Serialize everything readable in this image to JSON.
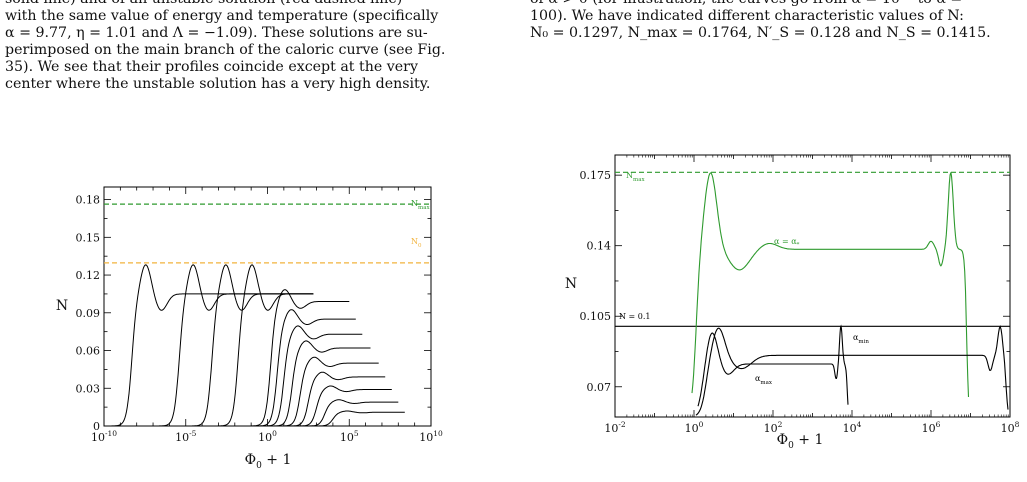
{
  "left_column": {
    "lines": [
      "solid line) and of an unstable solution (red dashed line)",
      "with the same value of energy and temperature (specifically",
      "α = 9.77, η = 1.01 and Λ = −1.09). These solutions are su-",
      "perimposed on the main branch of the caloric curve (see Fig.",
      "35).  We see that their profiles coincide except at the very",
      "center where the unstable solution has a very high density."
    ]
  },
  "right_column": {
    "lines": [
      "of α > 0 (for illustration, the curves go from α = 10⁻⁶ to α =",
      "100). We have indicated different characteristic values of N:",
      "N₀ = 0.1297, N_max = 0.1764, N′_S = 0.128 and N_S = 0.1415."
    ]
  },
  "colors": {
    "green": "#2e9a2e",
    "orange": "#f2b33d",
    "black": "#000000"
  },
  "chart_data": [
    {
      "type": "line",
      "x_scale": "log",
      "xlabel": "Φ0 + 1",
      "ylabel": "N",
      "xlim": [
        1e-10,
        10000000000.0
      ],
      "ylim": [
        0,
        0.19
      ],
      "x_ticks": [
        "10^-10",
        "10^-5",
        "10^0",
        "10^5",
        "10^10"
      ],
      "y_ticks": [
        "0",
        "0.03",
        "0.06",
        "0.09",
        "0.12",
        "0.15",
        "0.18"
      ],
      "reference_lines": [
        {
          "name": "N_max",
          "y": 0.1764,
          "color": "green",
          "style": "dashed"
        },
        {
          "name": "N_0",
          "y": 0.1297,
          "color": "orange",
          "style": "dashed"
        }
      ],
      "series": [
        {
          "rise_log": -8.0,
          "peak": 0.129,
          "plateau": 0.105,
          "end_log": 2.8
        },
        {
          "rise_log": -5.1,
          "peak": 0.129,
          "plateau": 0.105,
          "end_log": 2.8
        },
        {
          "rise_log": -3.1,
          "peak": 0.129,
          "plateau": 0.105,
          "end_log": 2.8
        },
        {
          "rise_log": -1.5,
          "peak": 0.129,
          "plateau": 0.105,
          "end_log": 2.8
        },
        {
          "rise_log": 0.5,
          "peak": 0.109,
          "plateau": 0.099,
          "end_log": 5.0
        },
        {
          "rise_log": 0.9,
          "peak": 0.093,
          "plateau": 0.085,
          "end_log": 5.4
        },
        {
          "rise_log": 1.3,
          "peak": 0.08,
          "plateau": 0.073,
          "end_log": 5.8
        },
        {
          "rise_log": 1.8,
          "peak": 0.068,
          "plateau": 0.062,
          "end_log": 6.3
        },
        {
          "rise_log": 2.3,
          "peak": 0.055,
          "plateau": 0.05,
          "end_log": 6.8
        },
        {
          "rise_log": 2.8,
          "peak": 0.043,
          "plateau": 0.039,
          "end_log": 7.2
        },
        {
          "rise_log": 3.3,
          "peak": 0.032,
          "plateau": 0.029,
          "end_log": 7.6
        },
        {
          "rise_log": 3.8,
          "peak": 0.021,
          "plateau": 0.019,
          "end_log": 8.0
        },
        {
          "rise_log": 4.3,
          "peak": 0.012,
          "plateau": 0.011,
          "end_log": 8.4
        }
      ]
    },
    {
      "type": "line",
      "x_scale": "log",
      "xlabel": "Φ0 + 1",
      "ylabel": "N",
      "xlim": [
        0.01,
        100000000.0
      ],
      "ylim": [
        0.055,
        0.185
      ],
      "x_ticks": [
        "10^-2",
        "10^0",
        "10^2",
        "10^4",
        "10^6",
        "10^8"
      ],
      "y_ticks": [
        "0.07",
        "0.105",
        "0.14",
        "0.175"
      ],
      "reference_lines": [
        {
          "name": "N_max",
          "y": 0.1764,
          "color": "green",
          "style": "dashed"
        },
        {
          "name": "N = 0.1",
          "y": 0.1,
          "color": "black",
          "style": "solid"
        }
      ],
      "annotations": [
        "N_max",
        "α = α_*",
        "N = 0.1",
        "α_min",
        "α_max"
      ],
      "series": [
        {
          "name": "α = α_*",
          "color": "green",
          "plateau": 0.1382,
          "peak": 0.1764
        },
        {
          "name": "α_min",
          "color": "black",
          "plateau": 0.0856
        },
        {
          "name": "α_max",
          "color": "black",
          "plateau": 0.0813
        }
      ]
    }
  ]
}
